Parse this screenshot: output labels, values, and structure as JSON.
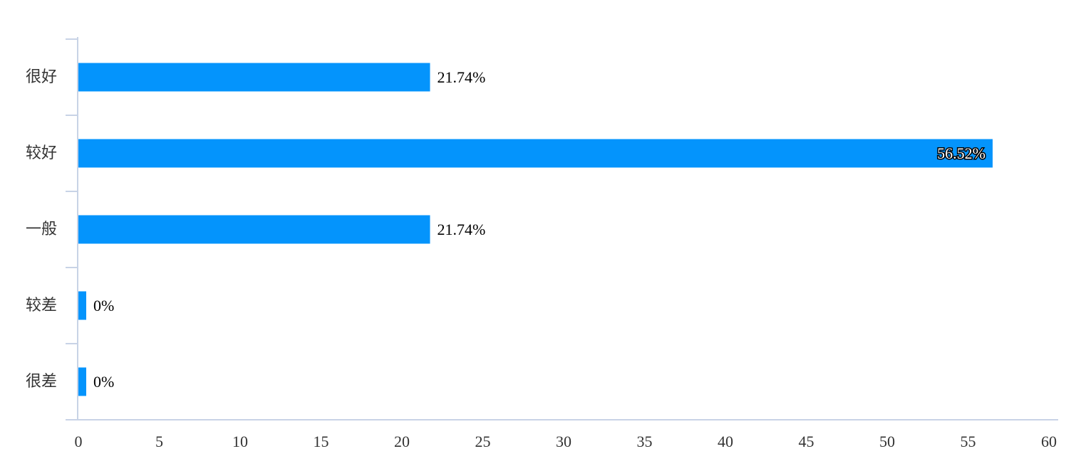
{
  "chart_data": {
    "type": "bar",
    "orientation": "horizontal",
    "categories": [
      "很好",
      "较好",
      "一般",
      "较差",
      "很差"
    ],
    "values": [
      21.74,
      56.52,
      21.74,
      0,
      0
    ],
    "data_labels": [
      "21.74%",
      "56.52%",
      "21.74%",
      "0%",
      "0%"
    ],
    "xlim": [
      0,
      60
    ],
    "x_ticks": [
      "0",
      "5",
      "10",
      "15",
      "20",
      "25",
      "30",
      "35",
      "40",
      "45",
      "50",
      "55",
      "60"
    ],
    "title": "",
    "xlabel": "",
    "ylabel": "",
    "grid": false,
    "legend": "none",
    "bar_color": "#0494fc"
  }
}
